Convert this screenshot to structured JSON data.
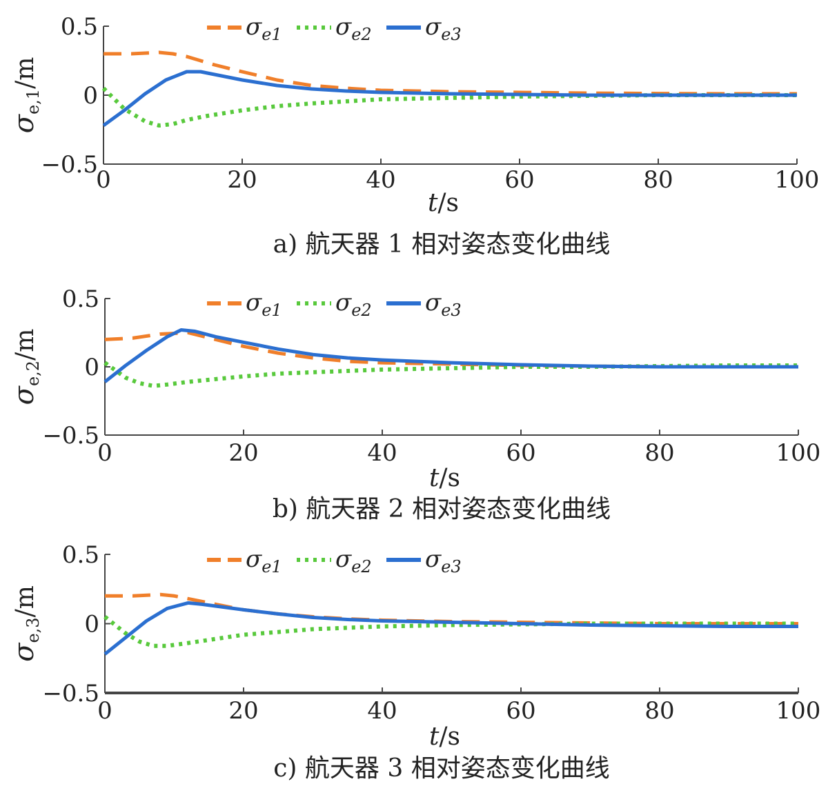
{
  "colors": {
    "sigma_e1": "#f07f2a",
    "sigma_e2": "#58c93c",
    "sigma_e3": "#2b6fd0",
    "axis": "#444444"
  },
  "chart_data": [
    {
      "type": "line",
      "caption": "a)   航天器 1 相对姿态变化曲线",
      "ylabel_main": "σ",
      "ylabel_sub": "e,1",
      "ylabel_unit": "/m",
      "xlabel_main": "t",
      "xlabel_unit": "/s",
      "xlim": [
        0,
        100
      ],
      "ylim": [
        -0.5,
        0.5
      ],
      "xticks": [
        "0",
        "20",
        "40",
        "60",
        "80",
        "100"
      ],
      "yticks": [
        "0.5",
        "0",
        "−0.5"
      ],
      "grid": false,
      "legend_position": "top",
      "series": [
        {
          "name": "σ",
          "sub": "e1",
          "style": "dashed",
          "x": [
            0,
            4,
            8,
            10,
            12,
            16,
            20,
            25,
            30,
            35,
            40,
            50,
            60,
            70,
            80,
            90,
            100
          ],
          "y": [
            0.3,
            0.3,
            0.31,
            0.3,
            0.28,
            0.22,
            0.17,
            0.11,
            0.07,
            0.05,
            0.035,
            0.025,
            0.02,
            0.015,
            0.012,
            0.01,
            0.01
          ]
        },
        {
          "name": "σ",
          "sub": "e2",
          "style": "dotted",
          "x": [
            0,
            3,
            6,
            8,
            10,
            12,
            15,
            20,
            25,
            30,
            40,
            50,
            60,
            70,
            80,
            90,
            100
          ],
          "y": [
            0.05,
            -0.1,
            -0.19,
            -0.22,
            -0.21,
            -0.18,
            -0.15,
            -0.11,
            -0.08,
            -0.06,
            -0.03,
            -0.02,
            -0.01,
            -0.005,
            0,
            0,
            0
          ]
        },
        {
          "name": "σ",
          "sub": "e3",
          "style": "solid",
          "x": [
            0,
            3,
            6,
            9,
            12,
            14,
            17,
            20,
            25,
            30,
            35,
            40,
            50,
            60,
            70,
            80,
            90,
            100
          ],
          "y": [
            -0.22,
            -0.11,
            0.01,
            0.11,
            0.17,
            0.17,
            0.14,
            0.11,
            0.07,
            0.045,
            0.03,
            0.02,
            0.01,
            0.005,
            0,
            0,
            0,
            0
          ]
        }
      ]
    },
    {
      "type": "line",
      "caption": "b)   航天器 2 相对姿态变化曲线",
      "ylabel_main": "σ",
      "ylabel_sub": "e,2",
      "ylabel_unit": "/m",
      "xlabel_main": "t",
      "xlabel_unit": "/s",
      "xlim": [
        0,
        100
      ],
      "ylim": [
        -0.5,
        0.5
      ],
      "xticks": [
        "0",
        "20",
        "40",
        "60",
        "80",
        "100"
      ],
      "yticks": [
        "0.5",
        "0",
        "−0.5"
      ],
      "grid": false,
      "legend_position": "top",
      "series": [
        {
          "name": "σ",
          "sub": "e1",
          "style": "dashed",
          "x": [
            0,
            4,
            8,
            12,
            16,
            20,
            25,
            30,
            35,
            40,
            50,
            60,
            70,
            80,
            90,
            100
          ],
          "y": [
            0.2,
            0.21,
            0.24,
            0.25,
            0.2,
            0.15,
            0.1,
            0.065,
            0.04,
            0.03,
            0.02,
            0.01,
            0.005,
            0,
            0,
            0
          ]
        },
        {
          "name": "σ",
          "sub": "e2",
          "style": "dotted",
          "x": [
            0,
            3,
            5,
            7,
            9,
            12,
            16,
            20,
            25,
            30,
            40,
            50,
            60,
            70,
            80,
            90,
            100
          ],
          "y": [
            0.03,
            -0.08,
            -0.12,
            -0.14,
            -0.13,
            -0.11,
            -0.09,
            -0.07,
            -0.05,
            -0.04,
            -0.02,
            -0.01,
            0,
            0,
            0.005,
            0.01,
            0.01
          ]
        },
        {
          "name": "σ",
          "sub": "e3",
          "style": "solid",
          "x": [
            0,
            3,
            6,
            9,
            11,
            13,
            16,
            20,
            25,
            30,
            35,
            40,
            50,
            60,
            70,
            80,
            90,
            100
          ],
          "y": [
            -0.11,
            0.01,
            0.12,
            0.22,
            0.27,
            0.26,
            0.22,
            0.18,
            0.13,
            0.09,
            0.065,
            0.05,
            0.03,
            0.015,
            0.005,
            0,
            0,
            0
          ]
        }
      ]
    },
    {
      "type": "line",
      "caption": "c)   航天器 3 相对姿态变化曲线",
      "ylabel_main": "σ",
      "ylabel_sub": "e,3",
      "ylabel_unit": "/m",
      "xlabel_main": "t",
      "xlabel_unit": "/s",
      "xlim": [
        0,
        100
      ],
      "ylim": [
        -0.5,
        0.5
      ],
      "xticks": [
        "0",
        "20",
        "40",
        "60",
        "80",
        "100"
      ],
      "yticks": [
        "0.5",
        "0",
        "−0.5"
      ],
      "grid": false,
      "legend_position": "top",
      "series": [
        {
          "name": "σ",
          "sub": "e1",
          "style": "dashed",
          "x": [
            0,
            4,
            8,
            10,
            12,
            16,
            20,
            25,
            30,
            35,
            40,
            50,
            60,
            70,
            80,
            90,
            100
          ],
          "y": [
            0.2,
            0.2,
            0.21,
            0.2,
            0.18,
            0.14,
            0.1,
            0.07,
            0.05,
            0.035,
            0.025,
            0.015,
            0.01,
            0.005,
            0,
            0,
            0
          ]
        },
        {
          "name": "σ",
          "sub": "e2",
          "style": "dotted",
          "x": [
            0,
            3,
            5,
            7,
            9,
            12,
            16,
            20,
            25,
            30,
            40,
            50,
            60,
            70,
            80,
            90,
            100
          ],
          "y": [
            0.05,
            -0.07,
            -0.13,
            -0.16,
            -0.16,
            -0.14,
            -0.11,
            -0.08,
            -0.06,
            -0.04,
            -0.02,
            -0.01,
            -0.005,
            0,
            0,
            0,
            0
          ]
        },
        {
          "name": "σ",
          "sub": "e3",
          "style": "solid",
          "x": [
            0,
            3,
            6,
            9,
            12,
            14,
            17,
            20,
            25,
            30,
            35,
            40,
            50,
            60,
            70,
            80,
            90,
            100
          ],
          "y": [
            -0.22,
            -0.1,
            0.02,
            0.11,
            0.15,
            0.14,
            0.12,
            0.1,
            0.07,
            0.045,
            0.03,
            0.02,
            0.01,
            0,
            -0.01,
            -0.015,
            -0.02,
            -0.02
          ]
        }
      ]
    }
  ]
}
